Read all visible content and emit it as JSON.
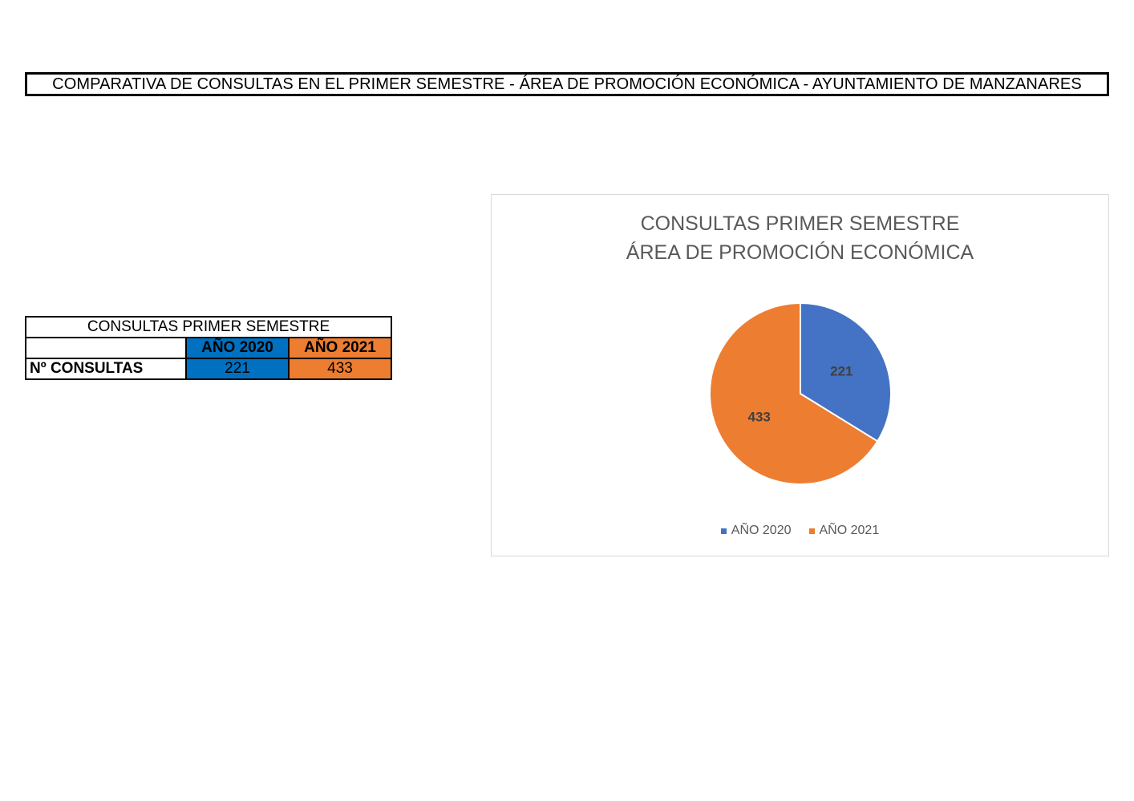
{
  "page": {
    "title": "COMPARATIVA DE CONSULTAS EN EL PRIMER SEMESTRE - ÁREA DE PROMOCIÓN ECONÓMICA - AYUNTAMIENTO DE MANZANARES"
  },
  "table": {
    "caption": "CONSULTAS PRIMER SEMESTRE",
    "headers": [
      "",
      "AÑO 2020",
      "AÑO 2021"
    ],
    "row_label": "Nº CONSULTAS",
    "values": [
      "221",
      "433"
    ],
    "colors": {
      "2020": "#0070c0",
      "2021": "#ed7d31"
    }
  },
  "chart_data": {
    "type": "pie",
    "title_lines": [
      "CONSULTAS PRIMER SEMESTRE",
      "ÁREA DE PROMOCIÓN ECONÓMICA"
    ],
    "categories": [
      "AÑO 2020",
      "AÑO 2021"
    ],
    "values": [
      221,
      433
    ],
    "colors": [
      "#4472c4",
      "#ed7d31"
    ],
    "data_labels": [
      "221",
      "433"
    ],
    "legend_position": "bottom"
  }
}
